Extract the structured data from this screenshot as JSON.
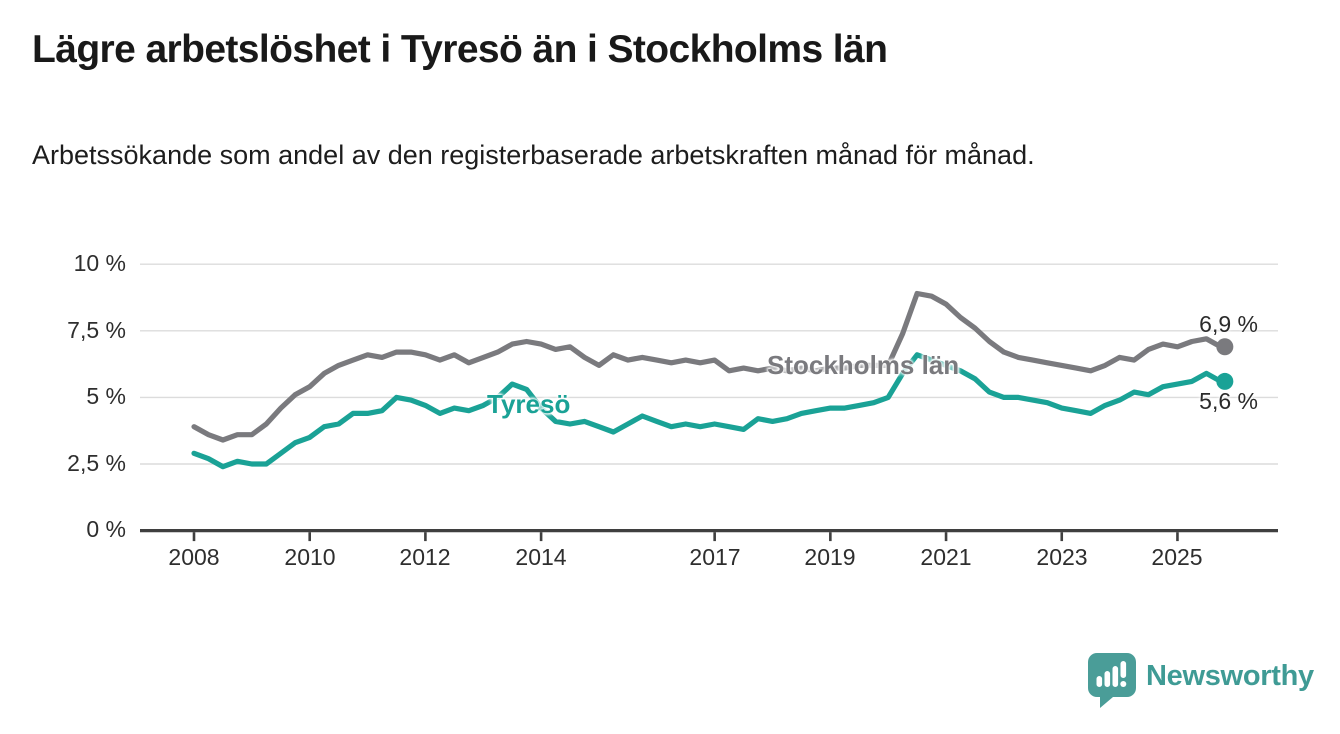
{
  "title": "Lägre arbetslöshet i Tyresö än i Stockholms län",
  "subtitle": "Arbetssökande som andel av den registerbaserade arbetskraften månad för månad.",
  "branding": {
    "wordmark": "Newsworthy",
    "text_color": "#3f9b95",
    "bubble_color": "#4a9d98"
  },
  "chart_data": {
    "type": "line",
    "title": "Lägre arbetslöshet i Tyresö än i Stockholms län",
    "xlabel": "",
    "ylabel": "Arbetssökande som andel av den registerbaserade arbetskraften",
    "grid": "horizontal",
    "legend_position": "inline-labels",
    "ylim": [
      0,
      10
    ],
    "xlim": [
      2008,
      2025.75
    ],
    "y_axis": {
      "ticks": [
        {
          "value": 10,
          "label": "10 %"
        },
        {
          "value": 7.5,
          "label": "7,5 %"
        },
        {
          "value": 5,
          "label": "5 %"
        },
        {
          "value": 2.5,
          "label": "2,5 %"
        },
        {
          "value": 0,
          "label": "0 %"
        }
      ]
    },
    "x_axis": {
      "ticks": [
        {
          "year": 2008,
          "label": "2008"
        },
        {
          "year": 2010,
          "label": "2010"
        },
        {
          "year": 2012,
          "label": "2012"
        },
        {
          "year": 2014,
          "label": "2014"
        },
        {
          "year": 2017,
          "label": "2017"
        },
        {
          "year": 2019,
          "label": "2019"
        },
        {
          "year": 2021,
          "label": "2021"
        },
        {
          "year": 2023,
          "label": "2023"
        },
        {
          "year": 2025,
          "label": "2025"
        }
      ]
    },
    "x": [
      2008,
      2008.25,
      2008.5,
      2008.75,
      2009,
      2009.25,
      2009.5,
      2009.75,
      2010,
      2010.25,
      2010.5,
      2010.75,
      2011,
      2011.25,
      2011.5,
      2011.75,
      2012,
      2012.25,
      2012.5,
      2012.75,
      2013,
      2013.25,
      2013.5,
      2013.75,
      2014,
      2014.25,
      2014.5,
      2014.75,
      2015,
      2015.25,
      2015.5,
      2015.75,
      2016,
      2016.25,
      2016.5,
      2016.75,
      2017,
      2017.25,
      2017.5,
      2017.75,
      2018,
      2018.25,
      2018.5,
      2018.75,
      2019,
      2019.25,
      2019.5,
      2019.75,
      2020,
      2020.25,
      2020.5,
      2020.75,
      2021,
      2021.25,
      2021.5,
      2021.75,
      2022,
      2022.25,
      2022.5,
      2022.75,
      2023,
      2023.25,
      2023.5,
      2023.75,
      2024,
      2024.25,
      2024.5,
      2024.75,
      2025,
      2025.25,
      2025.5,
      2025.75
    ],
    "series": [
      {
        "name": "Stockholms län",
        "color": "#7a7a7e",
        "end_label": "6,9 %",
        "end_value": 6.9,
        "values": [
          3.9,
          3.6,
          3.4,
          3.6,
          3.6,
          4.0,
          4.6,
          5.1,
          5.4,
          5.9,
          6.2,
          6.4,
          6.6,
          6.5,
          6.7,
          6.7,
          6.6,
          6.4,
          6.6,
          6.3,
          6.5,
          6.7,
          7.0,
          7.1,
          7.0,
          6.8,
          6.9,
          6.5,
          6.2,
          6.6,
          6.4,
          6.5,
          6.4,
          6.3,
          6.4,
          6.3,
          6.4,
          6.0,
          6.1,
          6.0,
          6.1,
          6.0,
          6.1,
          6.0,
          6.1,
          6.1,
          6.2,
          6.2,
          6.2,
          7.4,
          8.9,
          8.8,
          8.5,
          8.0,
          7.6,
          7.1,
          6.7,
          6.5,
          6.4,
          6.3,
          6.2,
          6.1,
          6.0,
          6.2,
          6.5,
          6.4,
          6.8,
          7.0,
          6.9,
          7.1,
          7.2,
          6.9
        ]
      },
      {
        "name": "Tyresö",
        "color": "#1aa296",
        "end_label": "5,6 %",
        "end_value": 5.6,
        "values": [
          2.9,
          2.7,
          2.4,
          2.6,
          2.5,
          2.5,
          2.9,
          3.3,
          3.5,
          3.9,
          4.0,
          4.4,
          4.4,
          4.5,
          5.0,
          4.9,
          4.7,
          4.4,
          4.6,
          4.5,
          4.7,
          5.0,
          5.5,
          5.3,
          4.6,
          4.1,
          4.0,
          4.1,
          3.9,
          3.7,
          4.0,
          4.3,
          4.1,
          3.9,
          4.0,
          3.9,
          4.0,
          3.9,
          3.8,
          4.2,
          4.1,
          4.2,
          4.4,
          4.5,
          4.6,
          4.6,
          4.7,
          4.8,
          5.0,
          5.9,
          6.6,
          6.4,
          6.2,
          6.0,
          5.7,
          5.2,
          5.0,
          5.0,
          4.9,
          4.8,
          4.6,
          4.5,
          4.4,
          4.7,
          4.9,
          5.2,
          5.1,
          5.4,
          5.5,
          5.6,
          5.9,
          5.6
        ]
      }
    ],
    "style": {
      "gridline_color": "#dcdcdc",
      "axis_color": "#3f3f3f",
      "tick_label_color": "#2e2e2e"
    }
  }
}
